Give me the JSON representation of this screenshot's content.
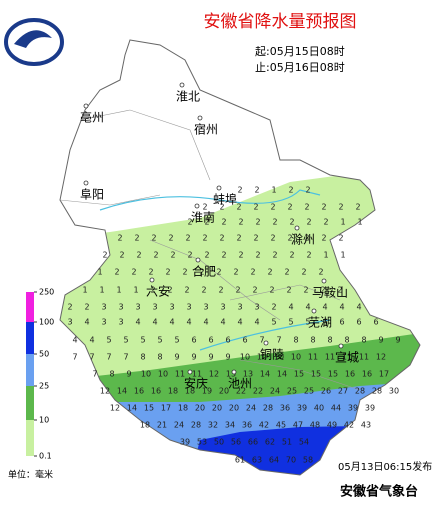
{
  "title": "安徽省降水量预报图",
  "period": {
    "start": "起:05月15日08时",
    "end": "止:05月16日08时"
  },
  "cities": [
    "淮北",
    "亳州",
    "宿州",
    "阜阳",
    "蚌埠",
    "淮南",
    "滁州",
    "合肥",
    "六安",
    "马鞍山",
    "芜湖",
    "铜陵",
    "宣城",
    "安庆",
    "池州"
  ],
  "legend": {
    "labels": [
      250,
      100,
      50,
      25,
      10,
      0.1
    ]
  },
  "unit": "单位：毫米",
  "issued": "05月13日06:15发布",
  "agency": "安徽省气象台",
  "stations": [
    [
      2,
      2,
      1,
      2,
      2
    ],
    [
      2,
      2,
      2,
      2,
      2,
      2,
      2,
      2,
      2,
      2
    ],
    [
      2,
      2,
      2,
      2,
      2,
      2,
      2,
      2,
      2,
      1,
      1
    ],
    [
      2,
      2,
      2,
      2,
      2,
      2,
      2,
      2,
      2,
      2,
      2,
      2,
      2,
      2
    ],
    [
      2,
      2,
      2,
      2,
      2,
      2,
      2,
      2,
      2,
      2,
      2,
      2,
      2,
      1,
      1
    ],
    [
      1,
      2,
      2,
      2,
      2,
      2,
      2,
      2,
      2,
      2,
      2,
      2,
      2,
      2
    ],
    [
      1,
      1,
      1,
      1,
      2,
      2,
      2,
      2,
      2,
      2,
      2,
      2,
      2,
      2,
      2,
      2
    ],
    [
      2,
      2,
      3,
      3,
      3,
      3,
      3,
      3,
      3,
      3,
      3,
      3,
      2,
      4,
      4,
      4,
      4,
      4
    ],
    [
      3,
      4,
      3,
      3,
      4,
      4,
      4,
      4,
      4,
      4,
      4,
      4,
      5,
      5,
      5,
      6,
      6,
      6,
      6
    ],
    [
      4,
      4,
      5,
      5,
      5,
      5,
      5,
      6,
      6,
      6,
      6,
      7,
      7,
      8,
      8,
      8,
      8,
      8,
      9,
      9
    ],
    [
      7,
      7,
      7,
      7,
      8,
      8,
      9,
      9,
      9,
      9,
      10,
      10,
      10,
      10,
      11,
      11,
      11,
      11,
      12
    ],
    [
      7,
      8,
      9,
      10,
      10,
      11,
      11,
      12,
      13,
      13,
      14,
      14,
      15,
      15,
      15,
      16,
      16,
      17
    ],
    [
      12,
      14,
      16,
      16,
      18,
      18,
      19,
      20,
      22,
      22,
      24,
      25,
      25,
      26,
      27,
      28,
      28,
      30
    ],
    [
      12,
      14,
      15,
      17,
      18,
      20,
      20,
      20,
      24,
      28,
      36,
      39,
      40,
      44,
      39,
      39
    ],
    [
      18,
      21,
      24,
      28,
      32,
      34,
      36,
      42,
      45,
      47,
      48,
      49,
      42,
      43
    ],
    [
      39,
      53,
      50,
      56,
      66,
      62,
      51,
      54
    ],
    [
      61,
      63,
      64,
      70,
      58
    ]
  ]
}
